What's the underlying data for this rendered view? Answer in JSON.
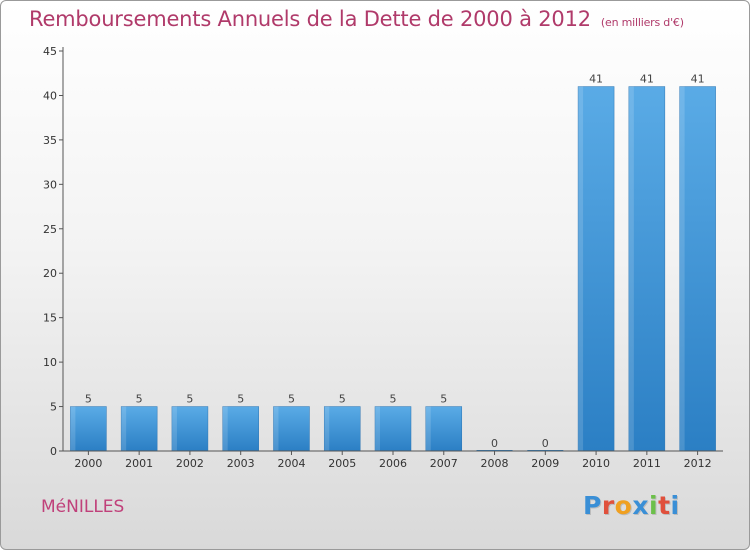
{
  "header": {
    "title": "Remboursements Annuels de la Dette de 2000 à 2012",
    "subtitle": "(en milliers d'€)"
  },
  "footer": {
    "city": "MéNILLES",
    "logo": [
      "P",
      "r",
      "o",
      "x",
      "i",
      "t",
      "i"
    ],
    "logo_colors": [
      "#3a8fd6",
      "#e0503c",
      "#f0a020",
      "#3a8fd6",
      "#6cc04a",
      "#e0503c",
      "#3a8fd6"
    ]
  },
  "chart_data": {
    "type": "bar",
    "categories": [
      "2000",
      "2001",
      "2002",
      "2003",
      "2004",
      "2005",
      "2006",
      "2007",
      "2008",
      "2009",
      "2010",
      "2011",
      "2012"
    ],
    "values": [
      5,
      5,
      5,
      5,
      5,
      5,
      5,
      5,
      0,
      0,
      41,
      41,
      41
    ],
    "title": "Remboursements Annuels de la Dette de 2000 à 2012",
    "subtitle": "(en milliers d'€)",
    "xlabel": "",
    "ylabel": "",
    "ylim": [
      0,
      45
    ],
    "yticks": [
      0,
      5,
      10,
      15,
      20,
      25,
      30,
      35,
      40,
      45
    ],
    "grid": false,
    "bar_color": "#3d97d8"
  }
}
